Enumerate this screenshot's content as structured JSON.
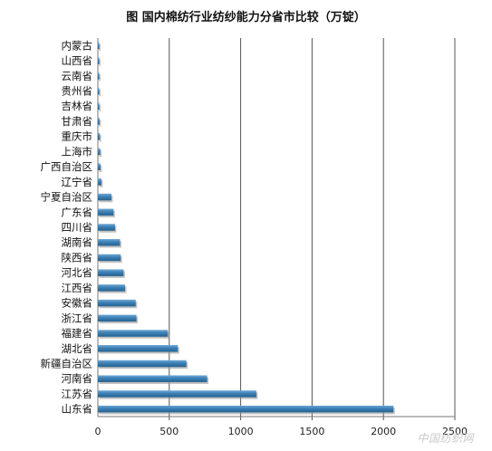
{
  "chart_data": {
    "type": "bar",
    "orientation": "horizontal",
    "title": "图  国内棉纺行业纺纱能力分省市比较（万锭）",
    "categories": [
      "内蒙古",
      "山西省",
      "云南省",
      "贵州省",
      "吉林省",
      "甘肃省",
      "重庆市",
      "上海市",
      "广西自治区",
      "辽宁省",
      "宁夏自治区",
      "广东省",
      "四川省",
      "湖南省",
      "陕西省",
      "河北省",
      "江西省",
      "安徽省",
      "浙江省",
      "福建省",
      "湖北省",
      "新疆自治区",
      "河南省",
      "江苏省",
      "山东省"
    ],
    "values": [
      3,
      5,
      6,
      8,
      10,
      12,
      14,
      16,
      18,
      25,
      95,
      110,
      120,
      155,
      160,
      180,
      190,
      265,
      270,
      490,
      560,
      620,
      765,
      1110,
      2070
    ],
    "xlim": [
      0,
      2500
    ],
    "xticks": [
      0,
      500,
      1000,
      1500,
      2000,
      2500
    ],
    "grid": true,
    "bar_color": "#3a7fb5"
  },
  "watermark": "中国纺织网"
}
